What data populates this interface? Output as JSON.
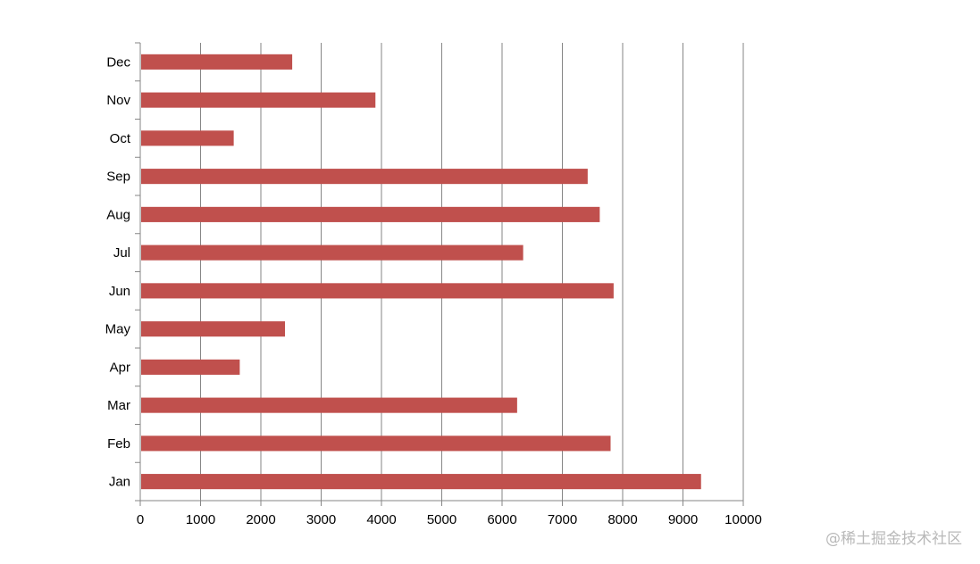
{
  "chart_data": {
    "type": "bar",
    "orientation": "horizontal",
    "categories": [
      "Jan",
      "Feb",
      "Mar",
      "Apr",
      "May",
      "Jun",
      "Jul",
      "Aug",
      "Sep",
      "Oct",
      "Nov",
      "Dec"
    ],
    "values": [
      9300,
      7800,
      6250,
      1650,
      2400,
      7850,
      6350,
      7620,
      7420,
      1550,
      3900,
      2520
    ],
    "xlim": [
      0,
      10000
    ],
    "xticks": [
      "0",
      "1000",
      "2000",
      "3000",
      "4000",
      "5000",
      "6000",
      "7000",
      "8000",
      "9000",
      "10000"
    ],
    "grid": "vertical",
    "bar_color": "#c0504d",
    "title": "",
    "xlabel": "",
    "ylabel": ""
  },
  "watermark": "@稀土掘金技术社区"
}
